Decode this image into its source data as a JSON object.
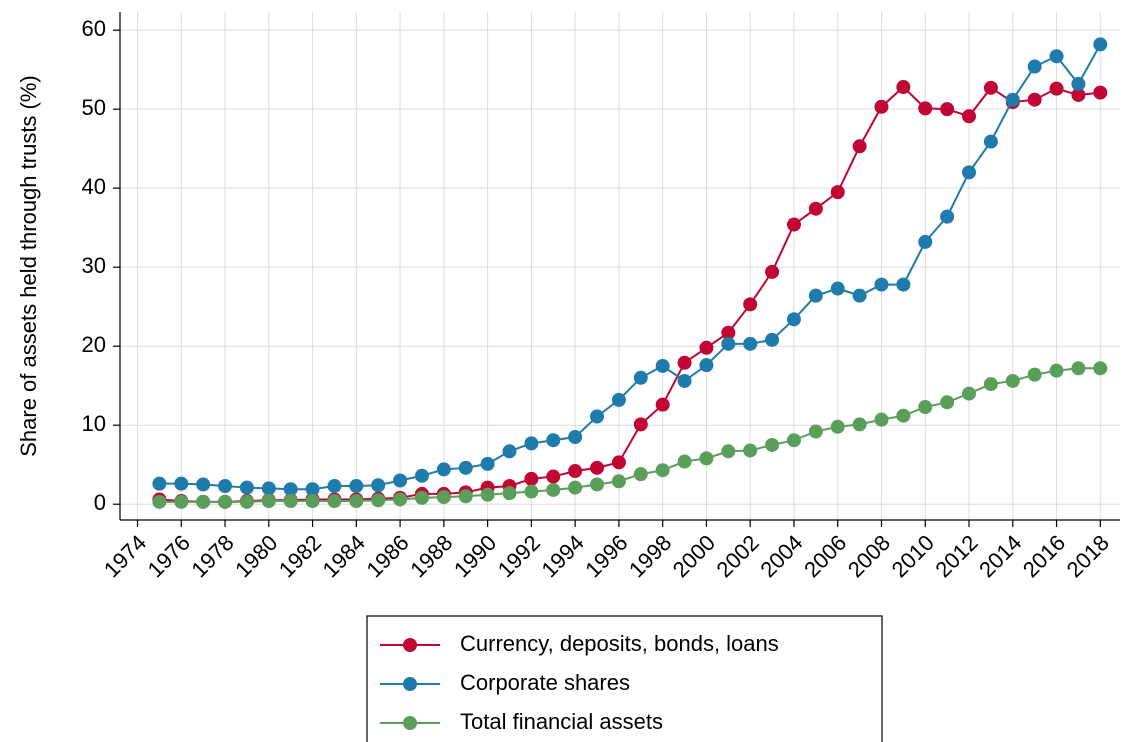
{
  "chart_data": {
    "type": "line",
    "ylabel": "Share of assets held through trusts (%)",
    "x": [
      1975,
      1976,
      1977,
      1978,
      1979,
      1980,
      1981,
      1982,
      1983,
      1984,
      1985,
      1986,
      1987,
      1988,
      1989,
      1990,
      1991,
      1992,
      1993,
      1994,
      1995,
      1996,
      1997,
      1998,
      1999,
      2000,
      2001,
      2002,
      2003,
      2004,
      2005,
      2006,
      2007,
      2008,
      2009,
      2010,
      2011,
      2012,
      2013,
      2014,
      2015,
      2016,
      2017,
      2018
    ],
    "series": [
      {
        "name": "Currency, deposits, bonds, loans",
        "color": "#c10534",
        "values": [
          0.6,
          0.4,
          0.3,
          0.3,
          0.4,
          0.5,
          0.5,
          0.6,
          0.6,
          0.6,
          0.7,
          0.8,
          1.3,
          1.3,
          1.5,
          2.1,
          2.3,
          3.2,
          3.5,
          4.2,
          4.6,
          5.3,
          10.1,
          12.6,
          17.9,
          19.8,
          21.7,
          25.3,
          29.4,
          35.4,
          37.4,
          39.5,
          45.3,
          50.3,
          52.8,
          50.1,
          50.0,
          49.1,
          52.7,
          50.9,
          51.2,
          52.6,
          51.8,
          52.1
        ]
      },
      {
        "name": "Corporate shares",
        "color": "#1f7bab",
        "values": [
          2.6,
          2.6,
          2.5,
          2.3,
          2.1,
          2.0,
          1.9,
          1.9,
          2.3,
          2.3,
          2.4,
          3.0,
          3.6,
          4.4,
          4.6,
          5.1,
          6.7,
          7.7,
          8.1,
          8.5,
          11.1,
          13.2,
          16.0,
          17.5,
          15.6,
          17.6,
          20.3,
          20.3,
          20.8,
          23.4,
          26.4,
          27.3,
          26.4,
          27.8,
          27.8,
          33.2,
          36.4,
          42.0,
          45.9,
          51.2,
          55.4,
          56.7,
          53.2,
          58.2
        ]
      },
      {
        "name": "Total financial assets",
        "color": "#5b9e5b",
        "values": [
          0.3,
          0.3,
          0.3,
          0.3,
          0.3,
          0.4,
          0.4,
          0.4,
          0.4,
          0.4,
          0.5,
          0.6,
          0.8,
          0.9,
          1.0,
          1.2,
          1.4,
          1.6,
          1.8,
          2.1,
          2.5,
          2.9,
          3.8,
          4.3,
          5.4,
          5.8,
          6.7,
          6.8,
          7.5,
          8.1,
          9.2,
          9.8,
          10.1,
          10.7,
          11.2,
          12.3,
          12.9,
          14.0,
          15.2,
          15.6,
          16.4,
          16.9,
          17.2,
          17.2
        ]
      }
    ],
    "xlim": [
      1973.2,
      2018.9
    ],
    "xticks": [
      1974,
      1976,
      1978,
      1980,
      1982,
      1984,
      1986,
      1988,
      1990,
      1992,
      1994,
      1996,
      1998,
      2000,
      2002,
      2004,
      2006,
      2008,
      2010,
      2012,
      2014,
      2016,
      2018
    ],
    "ylim": [
      -2,
      62.3
    ],
    "yticks": [
      0,
      10,
      20,
      30,
      40,
      50,
      60
    ],
    "grid": true,
    "legend": "bottom"
  }
}
